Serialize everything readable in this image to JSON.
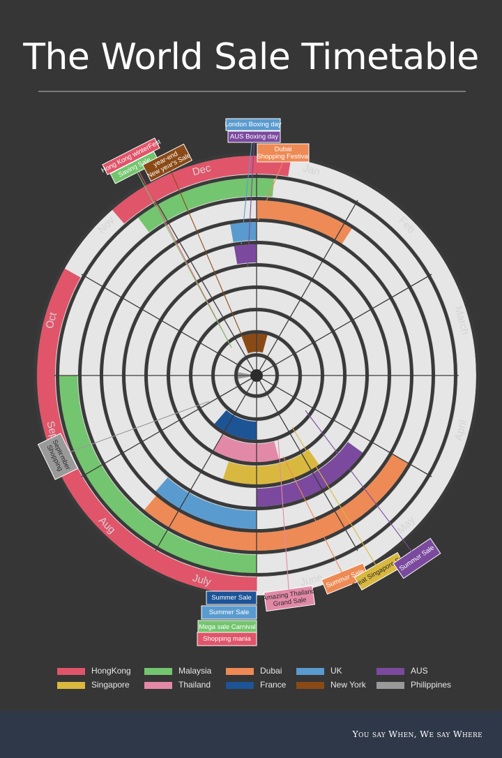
{
  "title": "The World Sale Timetable",
  "tagline": "You say When, We say Where",
  "chart_data": {
    "type": "radial-timeline",
    "months": [
      "Jan",
      "Feb",
      "March",
      "April",
      "May",
      "June",
      "July",
      "Aug",
      "Sep",
      "Oct",
      "Nov",
      "Dec"
    ],
    "series": [
      {
        "name": "HongKong",
        "color": "#e0556a"
      },
      {
        "name": "Malaysia",
        "color": "#74c56f"
      },
      {
        "name": "Dubai",
        "color": "#ee8a55"
      },
      {
        "name": "UK",
        "color": "#5a9bcf"
      },
      {
        "name": "AUS",
        "color": "#7b4a9e"
      },
      {
        "name": "Singapore",
        "color": "#d9b83f"
      },
      {
        "name": "Thailand",
        "color": "#e389a8"
      },
      {
        "name": "France",
        "color": "#1d5496"
      },
      {
        "name": "New York",
        "color": "#8a4a16"
      },
      {
        "name": "Philippines",
        "color": "#9a9a9a"
      }
    ],
    "events": [
      {
        "name": "Hong Kong winterFest",
        "country": "HongKong",
        "ring": 10,
        "start": 10.63,
        "end": 12.3
      },
      {
        "name": "Shopping mania",
        "country": "HongKong",
        "ring": 10,
        "start": 6,
        "end": 9.97
      },
      {
        "name": "Saving Sale",
        "country": "Malaysia",
        "ring": 9,
        "start": 10.77,
        "end": 12.17
      },
      {
        "name": "Mega sale Carnival",
        "country": "Malaysia",
        "ring": 9,
        "start": 6,
        "end": 9
      },
      {
        "name": "Dubai Shopping Festival",
        "country": "Dubai",
        "ring": 8,
        "start": 0,
        "end": 1.1
      },
      {
        "name": "Summer Sale",
        "country": "Dubai",
        "ring": 8,
        "start": 4,
        "end": 7.33
      },
      {
        "name": "London Boxing day",
        "country": "UK",
        "ring": 7,
        "start": 11.67,
        "end": 12
      },
      {
        "name": "Summer Sale",
        "country": "UK",
        "ring": 7,
        "start": 6,
        "end": 7.37
      },
      {
        "name": "AUS Boxing day",
        "country": "AUS",
        "ring": 6,
        "start": 11.67,
        "end": 12
      },
      {
        "name": "Summer Sale",
        "country": "AUS",
        "ring": 6,
        "start": 4.2,
        "end": 6
      },
      {
        "name": "Great Singapore Sale",
        "country": "Singapore",
        "ring": 5,
        "start": 4.83,
        "end": 6.6
      },
      {
        "name": "Amazing Thailand Grand Sale",
        "country": "Thailand",
        "ring": 4,
        "start": 5.5,
        "end": 7
      },
      {
        "name": "Summer Sale",
        "country": "France",
        "ring": 3,
        "start": 6,
        "end": 7.37
      },
      {
        "name": "year-end New year's Sale",
        "country": "New York",
        "ring": 2,
        "start": 11.3,
        "end": 12.5
      },
      {
        "name": "September Shopping",
        "country": "Philippines",
        "ring": 1,
        "start": 8.67,
        "end": 9.33
      }
    ],
    "callouts": [
      {
        "lines": [
          "London Boxing day"
        ],
        "color": "#5a9bcf",
        "text_color": "#ffffff"
      },
      {
        "lines": [
          "AUS Boxing day"
        ],
        "color": "#7b4a9e",
        "text_color": "#ffffff"
      },
      {
        "lines": [
          "Dubai",
          "Shopping Festival"
        ],
        "color": "#ee8a55",
        "text_color": "#ffffff"
      },
      {
        "lines": [
          "Hong Kong winterFest"
        ],
        "color": "#e0556a",
        "text_color": "#ffffff"
      },
      {
        "lines": [
          "Saving Sale"
        ],
        "color": "#74c56f",
        "text_color": "#ffffff"
      },
      {
        "lines": [
          "year-end",
          "New year's Sale"
        ],
        "color": "#8a4a16",
        "text_color": "#ffffff"
      },
      {
        "lines": [
          "September",
          "Shopping"
        ],
        "color": "#9a9a9a",
        "text_color": "#2a2a2a"
      },
      {
        "lines": [
          "Summer Sale"
        ],
        "color": "#1d5496",
        "text_color": "#ffffff"
      },
      {
        "lines": [
          "Summer Sale"
        ],
        "color": "#5a9bcf",
        "text_color": "#ffffff"
      },
      {
        "lines": [
          "Mega sale Carnival"
        ],
        "color": "#74c56f",
        "text_color": "#ffffff"
      },
      {
        "lines": [
          "Shopping mania"
        ],
        "color": "#e0556a",
        "text_color": "#ffffff"
      },
      {
        "lines": [
          "Amazing Thailand",
          "Grand Sale"
        ],
        "color": "#e389a8",
        "text_color": "#2a2a2a"
      },
      {
        "lines": [
          "Summer Sale"
        ],
        "color": "#ee8a55",
        "text_color": "#ffffff"
      },
      {
        "lines": [
          "Great Singapore Sale"
        ],
        "color": "#d9b83f",
        "text_color": "#2a2a2a"
      },
      {
        "lines": [
          "Summer Sale"
        ],
        "color": "#7b4a9e",
        "text_color": "#ffffff"
      }
    ]
  }
}
